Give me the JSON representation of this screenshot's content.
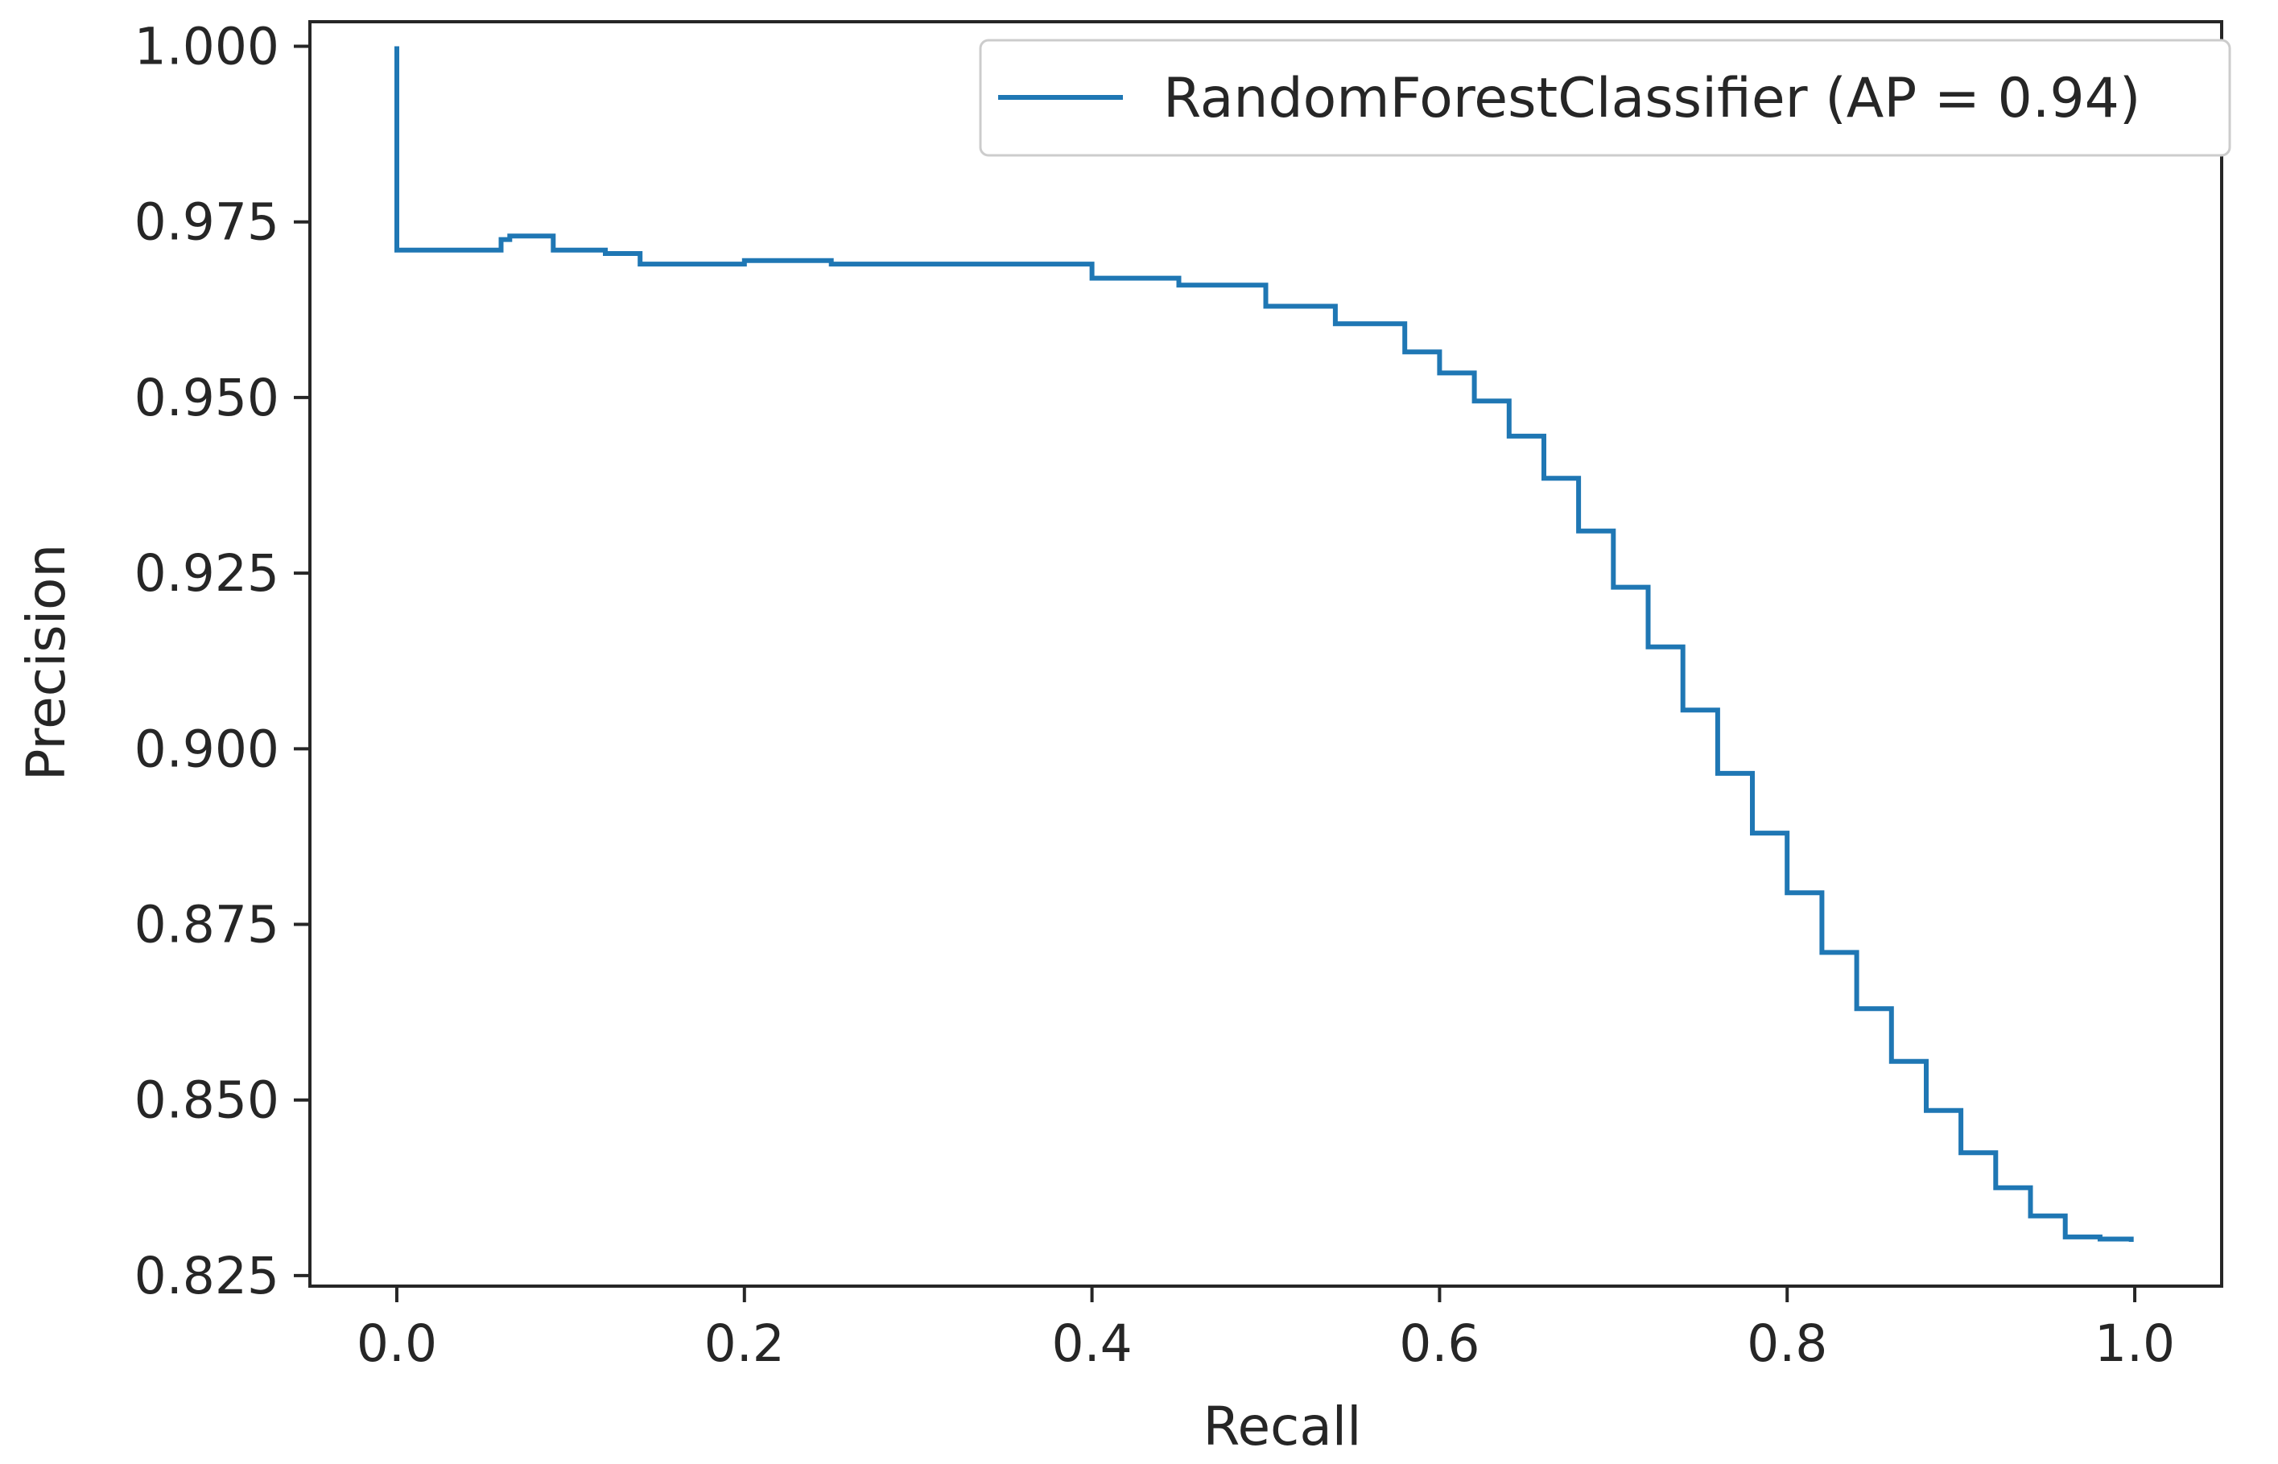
{
  "chart_data": {
    "type": "line",
    "title": "",
    "xlabel": "Recall",
    "ylabel": "Precision",
    "xlim": [
      -0.05,
      1.05
    ],
    "ylim": [
      0.8235,
      1.0035
    ],
    "x_ticks": [
      "0.0",
      "0.2",
      "0.4",
      "0.6",
      "0.8",
      "1.0"
    ],
    "x_tick_values": [
      0.0,
      0.2,
      0.4,
      0.6,
      0.8,
      1.0
    ],
    "y_ticks": [
      "0.825",
      "0.850",
      "0.875",
      "0.900",
      "0.925",
      "0.950",
      "0.975",
      "1.000"
    ],
    "y_tick_values": [
      0.825,
      0.85,
      0.875,
      0.9,
      0.925,
      0.95,
      0.975,
      1.0
    ],
    "grid": false,
    "legend_position": "top-right",
    "step": true,
    "series": [
      {
        "name": "RandomForestClassifier (AP = 0.94)",
        "color": "#1f77b4",
        "points": [
          [
            0.0,
            1.0
          ],
          [
            0.0,
            0.971
          ],
          [
            0.055,
            0.971
          ],
          [
            0.06,
            0.9725
          ],
          [
            0.065,
            0.973
          ],
          [
            0.085,
            0.973
          ],
          [
            0.09,
            0.971
          ],
          [
            0.12,
            0.9705
          ],
          [
            0.14,
            0.969
          ],
          [
            0.2,
            0.9695
          ],
          [
            0.25,
            0.969
          ],
          [
            0.3,
            0.969
          ],
          [
            0.33,
            0.969
          ],
          [
            0.4,
            0.967
          ],
          [
            0.45,
            0.966
          ],
          [
            0.5,
            0.963
          ],
          [
            0.54,
            0.9605
          ],
          [
            0.58,
            0.9565
          ],
          [
            0.6,
            0.9535
          ],
          [
            0.62,
            0.9495
          ],
          [
            0.64,
            0.9445
          ],
          [
            0.66,
            0.9385
          ],
          [
            0.68,
            0.931
          ],
          [
            0.7,
            0.923
          ],
          [
            0.72,
            0.9145
          ],
          [
            0.74,
            0.9055
          ],
          [
            0.76,
            0.8965
          ],
          [
            0.78,
            0.888
          ],
          [
            0.8,
            0.8795
          ],
          [
            0.82,
            0.871
          ],
          [
            0.84,
            0.863
          ],
          [
            0.86,
            0.8555
          ],
          [
            0.88,
            0.8485
          ],
          [
            0.9,
            0.8425
          ],
          [
            0.92,
            0.8375
          ],
          [
            0.94,
            0.8335
          ],
          [
            0.96,
            0.8305
          ],
          [
            0.98,
            0.8302
          ],
          [
            0.998,
            0.8298
          ]
        ]
      }
    ]
  }
}
